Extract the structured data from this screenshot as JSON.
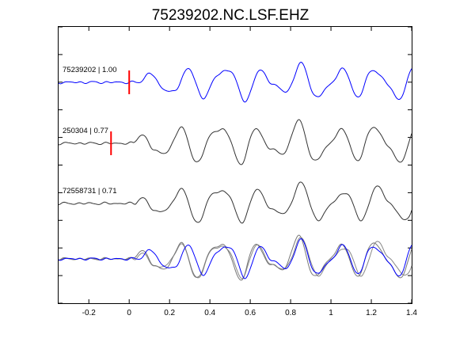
{
  "chart_data": {
    "type": "line",
    "title": "75239202.NC.LSF.EHZ",
    "xlabel": "",
    "ylabel": "",
    "xlim": [
      -0.35,
      1.4
    ],
    "x_ticks": [
      "-0.2",
      "0",
      "0.2",
      "0.4",
      "0.6",
      "0.8",
      "1",
      "1.2",
      "1.4"
    ],
    "x_tick_values": [
      -0.2,
      0,
      0.2,
      0.4,
      0.6,
      0.8,
      1.0,
      1.2,
      1.4
    ],
    "grid": false,
    "traces": [
      {
        "label": "75239202 | 1.00",
        "color": "#0000ff",
        "pick_time": 0.0,
        "onset": 0.05,
        "amp": 23,
        "freq_hz": 5.3,
        "phase": 0.0
      },
      {
        "label": "250304 | 0.77",
        "color": "#333333",
        "pick_time": -0.09,
        "onset": 0.02,
        "amp": 27,
        "freq_hz": 5.1,
        "phase": 0.5
      },
      {
        "label": "72558731 | 0.71",
        "color": "#333333",
        "pick_time": null,
        "onset": 0.03,
        "amp": 25,
        "freq_hz": 5.0,
        "phase": 1.0
      }
    ],
    "overlay": {
      "colors": [
        "#0000ff",
        "#777777",
        "#888888"
      ]
    },
    "pick_color": "#ff0000"
  }
}
